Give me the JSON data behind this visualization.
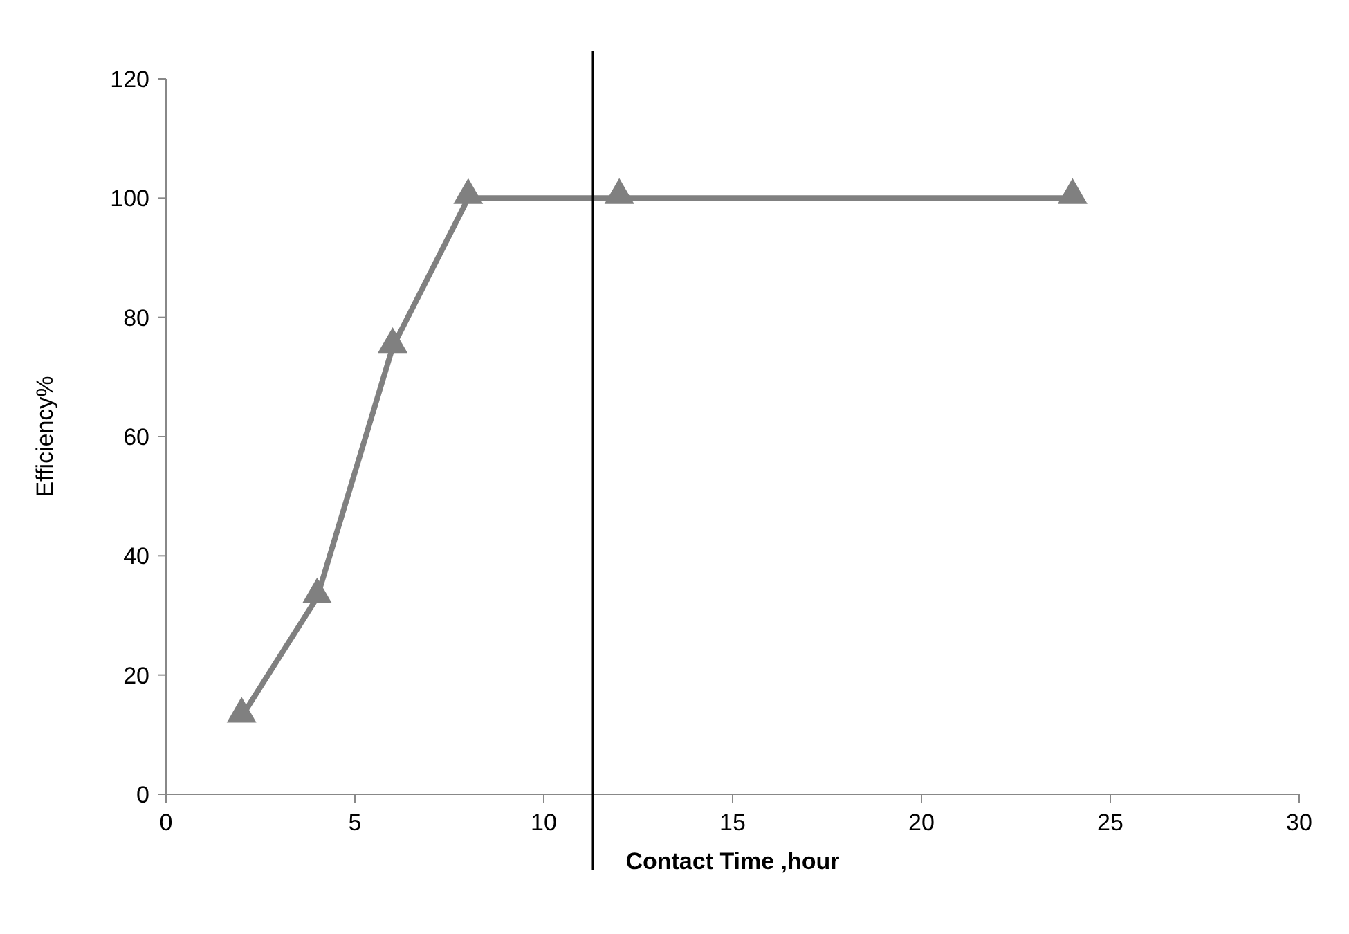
{
  "chart_data": {
    "type": "line",
    "xlabel": "Contact Time ,hour",
    "ylabel": "Efficiency%",
    "x": [
      2,
      4,
      6,
      8,
      12,
      24
    ],
    "series": [
      {
        "color": "#808080",
        "values": [
          13,
          33,
          75,
          100,
          100,
          100
        ]
      }
    ],
    "xlim": [
      0,
      30
    ],
    "xticks": [
      0,
      5,
      10,
      15,
      20,
      25,
      30
    ],
    "ylim": [
      0,
      120
    ],
    "yticks": [
      0,
      20,
      40,
      60,
      80,
      100,
      120
    ],
    "ref_lines": [
      {
        "axis": "x",
        "value": 11.3,
        "color": "#000000"
      }
    ],
    "marker": "triangle",
    "grid": false
  }
}
